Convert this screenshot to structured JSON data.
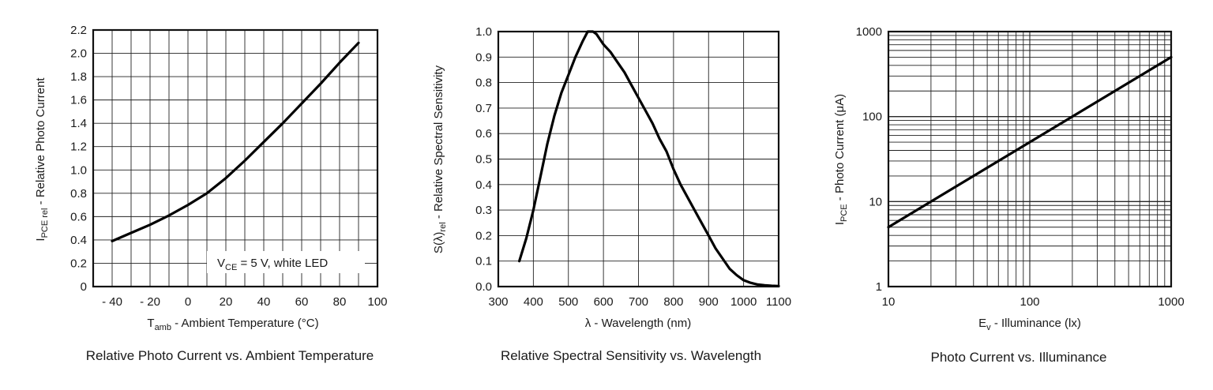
{
  "chart_data": [
    {
      "type": "line",
      "caption": "Relative Photo Current vs. Ambient Temperature",
      "xlabel": {
        "main": "T",
        "sub": "amb",
        "rest": " - Ambient Temperature (°C)"
      },
      "ylabel": {
        "main": "I",
        "sub": "PCE rel",
        "rest": " - Relative Photo Current"
      },
      "xlim": [
        -50,
        100
      ],
      "ylim": [
        0,
        2.2
      ],
      "xticks": [
        "- 40",
        "- 20",
        "0",
        "20",
        "40",
        "60",
        "80",
        "100"
      ],
      "yticks": [
        "0",
        "0.2",
        "0.4",
        "0.6",
        "0.8",
        "1.0",
        "1.2",
        "1.4",
        "1.6",
        "1.8",
        "2.0",
        "2.2"
      ],
      "annotation": {
        "main": "V",
        "sub": "CE",
        "rest": " = 5 V, white LED"
      },
      "grid": true,
      "x": [
        -40,
        -30,
        -20,
        -10,
        0,
        10,
        20,
        30,
        40,
        50,
        60,
        70,
        80,
        90
      ],
      "y": [
        0.39,
        0.46,
        0.53,
        0.61,
        0.7,
        0.8,
        0.93,
        1.08,
        1.24,
        1.4,
        1.57,
        1.74,
        1.92,
        2.09
      ]
    },
    {
      "type": "line",
      "caption": "Relative Spectral Sensitivity vs. Wavelength",
      "xlabel": {
        "main": "λ - Wavelength (nm)"
      },
      "ylabel": {
        "main": "S(λ)",
        "sub": "rel",
        "rest": " - Relative Spectral Sensitivity"
      },
      "xlim": [
        300,
        1100
      ],
      "ylim": [
        0,
        1.0
      ],
      "xticks": [
        "300",
        "400",
        "500",
        "600",
        "700",
        "800",
        "900",
        "1000",
        "1100"
      ],
      "yticks": [
        "0.0",
        "0.1",
        "0.2",
        "0.3",
        "0.4",
        "0.5",
        "0.6",
        "0.7",
        "0.8",
        "0.9",
        "1.0"
      ],
      "grid": true,
      "x": [
        360,
        380,
        400,
        420,
        440,
        460,
        480,
        500,
        520,
        540,
        555,
        570,
        580,
        600,
        620,
        640,
        660,
        680,
        700,
        720,
        740,
        760,
        780,
        800,
        820,
        840,
        860,
        880,
        900,
        920,
        940,
        960,
        980,
        1000,
        1020,
        1040,
        1060,
        1080,
        1100
      ],
      "y": [
        0.1,
        0.19,
        0.3,
        0.43,
        0.56,
        0.67,
        0.76,
        0.83,
        0.9,
        0.96,
        1.0,
        1.0,
        0.99,
        0.95,
        0.92,
        0.88,
        0.84,
        0.79,
        0.74,
        0.69,
        0.64,
        0.58,
        0.53,
        0.46,
        0.4,
        0.35,
        0.3,
        0.25,
        0.2,
        0.15,
        0.11,
        0.07,
        0.045,
        0.025,
        0.015,
        0.008,
        0.005,
        0.003,
        0.002
      ]
    },
    {
      "type": "line",
      "caption": "Photo Current vs. Illuminance",
      "xlabel": {
        "main": "E",
        "sub": "v",
        "rest": " - Illuminance (lx)"
      },
      "ylabel": {
        "main": "I",
        "sub": "PCE",
        "rest": " - Photo Current (μA)"
      },
      "xscale": "log",
      "yscale": "log",
      "xlim": [
        10,
        1000
      ],
      "ylim": [
        1,
        1000
      ],
      "xticks": [
        "10",
        "100",
        "1000"
      ],
      "yticks": [
        "1",
        "10",
        "100",
        "1000"
      ],
      "grid": true,
      "x": [
        10,
        1000
      ],
      "y": [
        5,
        500
      ]
    }
  ]
}
